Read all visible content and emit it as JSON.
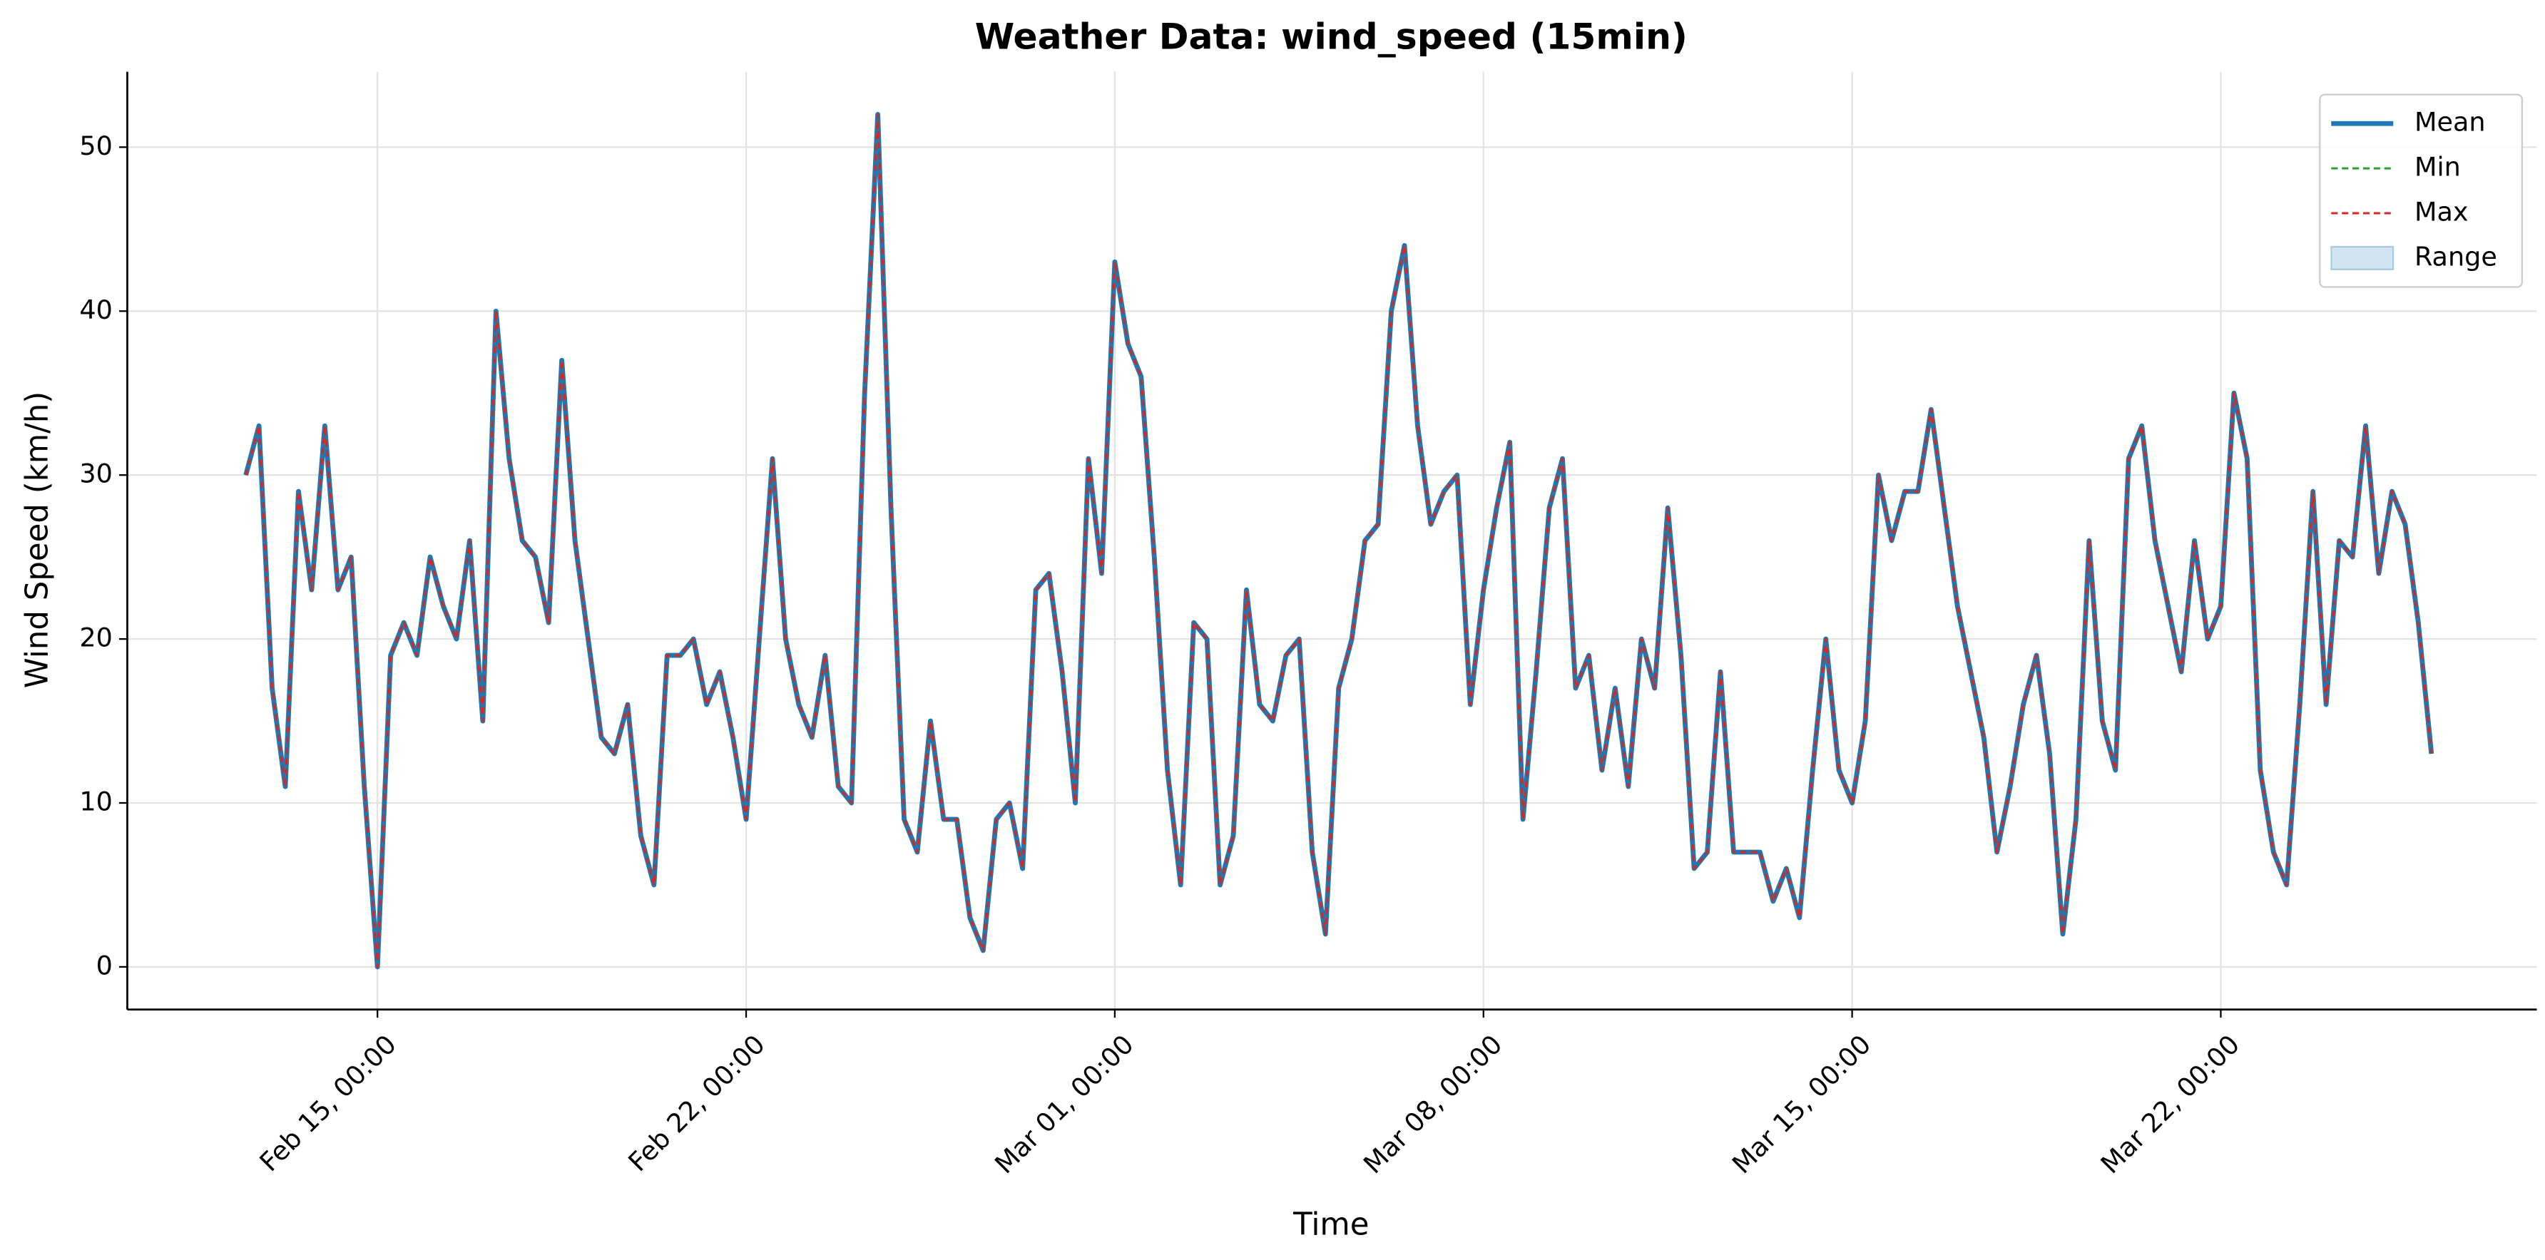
{
  "chart_data": {
    "type": "line",
    "title": "Weather Data: wind_speed (15min)",
    "xlabel": "Time",
    "ylabel": "Wind Speed (km/h)",
    "x": [
      "Feb 12, 12:00",
      "Feb 12, 18:00",
      "Feb 13, 00:00",
      "Feb 13, 06:00",
      "Feb 13, 12:00",
      "Feb 13, 18:00",
      "Feb 14, 00:00",
      "Feb 14, 06:00",
      "Feb 14, 12:00",
      "Feb 14, 18:00",
      "Feb 15, 00:00",
      "Feb 15, 06:00",
      "Feb 15, 12:00",
      "Feb 15, 18:00",
      "Feb 16, 00:00",
      "Feb 16, 06:00",
      "Feb 16, 12:00",
      "Feb 16, 18:00",
      "Feb 17, 00:00",
      "Feb 17, 06:00",
      "Feb 17, 12:00",
      "Feb 17, 18:00",
      "Feb 18, 00:00",
      "Feb 18, 06:00",
      "Feb 18, 12:00",
      "Feb 18, 18:00",
      "Feb 19, 00:00",
      "Feb 19, 06:00",
      "Feb 19, 12:00",
      "Feb 19, 18:00",
      "Feb 20, 00:00",
      "Feb 20, 06:00",
      "Feb 20, 12:00",
      "Feb 20, 18:00",
      "Feb 21, 00:00",
      "Feb 21, 06:00",
      "Feb 21, 12:00",
      "Feb 21, 18:00",
      "Feb 22, 00:00",
      "Feb 22, 06:00",
      "Feb 22, 12:00",
      "Feb 22, 18:00",
      "Feb 23, 00:00",
      "Feb 23, 06:00",
      "Feb 23, 12:00",
      "Feb 23, 18:00",
      "Feb 24, 00:00",
      "Feb 24, 06:00",
      "Feb 24, 12:00",
      "Feb 24, 18:00",
      "Feb 25, 00:00",
      "Feb 25, 06:00",
      "Feb 25, 12:00",
      "Feb 25, 18:00",
      "Feb 26, 00:00",
      "Feb 26, 06:00",
      "Feb 26, 12:00",
      "Feb 26, 18:00",
      "Feb 27, 00:00",
      "Feb 27, 06:00",
      "Feb 27, 12:00",
      "Feb 27, 18:00",
      "Feb 28, 00:00",
      "Feb 28, 06:00",
      "Feb 28, 12:00",
      "Feb 28, 18:00",
      "Mar 01, 00:00",
      "Mar 01, 06:00",
      "Mar 01, 12:00",
      "Mar 01, 18:00",
      "Mar 02, 00:00",
      "Mar 02, 06:00",
      "Mar 02, 12:00",
      "Mar 02, 18:00",
      "Mar 03, 00:00",
      "Mar 03, 06:00",
      "Mar 03, 12:00",
      "Mar 03, 18:00",
      "Mar 04, 00:00",
      "Mar 04, 06:00",
      "Mar 04, 12:00",
      "Mar 04, 18:00",
      "Mar 05, 00:00",
      "Mar 05, 06:00",
      "Mar 05, 12:00",
      "Mar 05, 18:00",
      "Mar 06, 00:00",
      "Mar 06, 06:00",
      "Mar 06, 12:00",
      "Mar 06, 18:00",
      "Mar 07, 00:00",
      "Mar 07, 06:00",
      "Mar 07, 12:00",
      "Mar 07, 18:00",
      "Mar 08, 00:00",
      "Mar 08, 06:00",
      "Mar 08, 12:00",
      "Mar 08, 18:00",
      "Mar 09, 00:00",
      "Mar 09, 06:00",
      "Mar 09, 12:00",
      "Mar 09, 18:00",
      "Mar 10, 00:00",
      "Mar 10, 06:00",
      "Mar 10, 12:00",
      "Mar 10, 18:00",
      "Mar 11, 00:00",
      "Mar 11, 06:00",
      "Mar 11, 12:00",
      "Mar 11, 18:00",
      "Mar 12, 00:00",
      "Mar 12, 06:00",
      "Mar 12, 12:00",
      "Mar 12, 18:00",
      "Mar 13, 00:00",
      "Mar 13, 06:00",
      "Mar 13, 12:00",
      "Mar 13, 18:00",
      "Mar 14, 00:00",
      "Mar 14, 06:00",
      "Mar 14, 12:00",
      "Mar 14, 18:00",
      "Mar 15, 00:00",
      "Mar 15, 06:00",
      "Mar 15, 12:00",
      "Mar 15, 18:00",
      "Mar 16, 00:00",
      "Mar 16, 06:00",
      "Mar 16, 12:00",
      "Mar 16, 18:00",
      "Mar 17, 00:00",
      "Mar 17, 06:00",
      "Mar 17, 12:00",
      "Mar 17, 18:00",
      "Mar 18, 00:00",
      "Mar 18, 06:00",
      "Mar 18, 12:00",
      "Mar 18, 18:00",
      "Mar 19, 00:00",
      "Mar 19, 06:00",
      "Mar 19, 12:00",
      "Mar 19, 18:00",
      "Mar 20, 00:00",
      "Mar 20, 06:00",
      "Mar 20, 12:00",
      "Mar 20, 18:00",
      "Mar 21, 00:00",
      "Mar 21, 06:00",
      "Mar 21, 12:00",
      "Mar 21, 18:00",
      "Mar 22, 00:00",
      "Mar 22, 06:00",
      "Mar 22, 12:00",
      "Mar 22, 18:00",
      "Mar 23, 00:00",
      "Mar 23, 06:00",
      "Mar 23, 12:00",
      "Mar 23, 18:00",
      "Mar 24, 00:00",
      "Mar 24, 06:00",
      "Mar 24, 12:00",
      "Mar 24, 18:00",
      "Mar 25, 00:00",
      "Mar 25, 06:00",
      "Mar 25, 12:00",
      "Mar 25, 18:00",
      "Mar 26, 00:00"
    ],
    "series": [
      {
        "name": "Mean",
        "color": "#1f77b4",
        "linestyle": "solid",
        "values": [
          30,
          33,
          17,
          11,
          29,
          23,
          33,
          23,
          25,
          11,
          0,
          19,
          21,
          19,
          25,
          22,
          20,
          26,
          15,
          40,
          31,
          26,
          25,
          21,
          37,
          26,
          20,
          14,
          13,
          16,
          8,
          5,
          19,
          19,
          20,
          16,
          18,
          14,
          9,
          20,
          31,
          20,
          16,
          14,
          19,
          11,
          10,
          35,
          52,
          28,
          9,
          7,
          15,
          9,
          9,
          3,
          1,
          9,
          10,
          6,
          23,
          24,
          18,
          10,
          31,
          24,
          43,
          38,
          36,
          25,
          12,
          5,
          21,
          20,
          5,
          8,
          23,
          16,
          15,
          19,
          20,
          7,
          2,
          17,
          20,
          26,
          27,
          40,
          44,
          33,
          27,
          29,
          30,
          16,
          23,
          28,
          32,
          9,
          18,
          28,
          31,
          17,
          19,
          12,
          17,
          11,
          20,
          17,
          28,
          19,
          6,
          7,
          18,
          7,
          7,
          7,
          4,
          6,
          3,
          12,
          20,
          12,
          10,
          15,
          30,
          26,
          29,
          29,
          34,
          28,
          22,
          18,
          14,
          7,
          11,
          16,
          19,
          13,
          2,
          9,
          26,
          15,
          12,
          31,
          33,
          26,
          22,
          18,
          26,
          20,
          22,
          35,
          31,
          12,
          7,
          5,
          16,
          29,
          16,
          26,
          25,
          33,
          24,
          29,
          27,
          21,
          13
        ]
      },
      {
        "name": "Min",
        "color": "#2ca02c",
        "linestyle": "dashed",
        "values": [
          30,
          33,
          17,
          11,
          29,
          23,
          33,
          23,
          25,
          11,
          0,
          19,
          21,
          19,
          25,
          22,
          20,
          26,
          15,
          40,
          31,
          26,
          25,
          21,
          37,
          26,
          20,
          14,
          13,
          16,
          8,
          5,
          19,
          19,
          20,
          16,
          18,
          14,
          9,
          20,
          31,
          20,
          16,
          14,
          19,
          11,
          10,
          35,
          52,
          28,
          9,
          7,
          15,
          9,
          9,
          3,
          1,
          9,
          10,
          6,
          23,
          24,
          18,
          10,
          31,
          24,
          43,
          38,
          36,
          25,
          12,
          5,
          21,
          20,
          5,
          8,
          23,
          16,
          15,
          19,
          20,
          7,
          2,
          17,
          20,
          26,
          27,
          40,
          44,
          33,
          27,
          29,
          30,
          16,
          23,
          28,
          32,
          9,
          18,
          28,
          31,
          17,
          19,
          12,
          17,
          11,
          20,
          17,
          28,
          19,
          6,
          7,
          18,
          7,
          7,
          7,
          4,
          6,
          3,
          12,
          20,
          12,
          10,
          15,
          30,
          26,
          29,
          29,
          34,
          28,
          22,
          18,
          14,
          7,
          11,
          16,
          19,
          13,
          2,
          9,
          26,
          15,
          12,
          31,
          33,
          26,
          22,
          18,
          26,
          20,
          22,
          35,
          31,
          12,
          7,
          5,
          16,
          29,
          16,
          26,
          25,
          33,
          24,
          29,
          27,
          21,
          13
        ]
      },
      {
        "name": "Max",
        "color": "#d62728",
        "linestyle": "dashed",
        "values": [
          30,
          33,
          17,
          11,
          29,
          23,
          33,
          23,
          25,
          11,
          0,
          19,
          21,
          19,
          25,
          22,
          20,
          26,
          15,
          40,
          31,
          26,
          25,
          21,
          37,
          26,
          20,
          14,
          13,
          16,
          8,
          5,
          19,
          19,
          20,
          16,
          18,
          14,
          9,
          20,
          31,
          20,
          16,
          14,
          19,
          11,
          10,
          35,
          52,
          28,
          9,
          7,
          15,
          9,
          9,
          3,
          1,
          9,
          10,
          6,
          23,
          24,
          18,
          10,
          31,
          24,
          43,
          38,
          36,
          25,
          12,
          5,
          21,
          20,
          5,
          8,
          23,
          16,
          15,
          19,
          20,
          7,
          2,
          17,
          20,
          26,
          27,
          40,
          44,
          33,
          27,
          29,
          30,
          16,
          23,
          28,
          32,
          9,
          18,
          28,
          31,
          17,
          19,
          12,
          17,
          11,
          20,
          17,
          28,
          19,
          6,
          7,
          18,
          7,
          7,
          7,
          4,
          6,
          3,
          12,
          20,
          12,
          10,
          15,
          30,
          26,
          29,
          29,
          34,
          28,
          22,
          18,
          14,
          7,
          11,
          16,
          19,
          13,
          2,
          9,
          26,
          15,
          12,
          31,
          33,
          26,
          22,
          18,
          26,
          20,
          22,
          35,
          31,
          12,
          7,
          5,
          16,
          29,
          16,
          26,
          25,
          33,
          24,
          29,
          27,
          21,
          13
        ]
      }
    ],
    "range": {
      "name": "Range",
      "color": "#1f77b4"
    },
    "xlim": [
      "Feb 10, 06:00",
      "Mar 28, 00:00"
    ],
    "xticks": [
      "Feb 15, 00:00",
      "Feb 22, 00:00",
      "Mar 01, 00:00",
      "Mar 08, 00:00",
      "Mar 15, 00:00",
      "Mar 22, 00:00"
    ],
    "ylim": [
      -2.6,
      54.6
    ],
    "yticks": [
      0,
      10,
      20,
      30,
      40,
      50
    ],
    "grid": true,
    "legend": "upper right"
  }
}
